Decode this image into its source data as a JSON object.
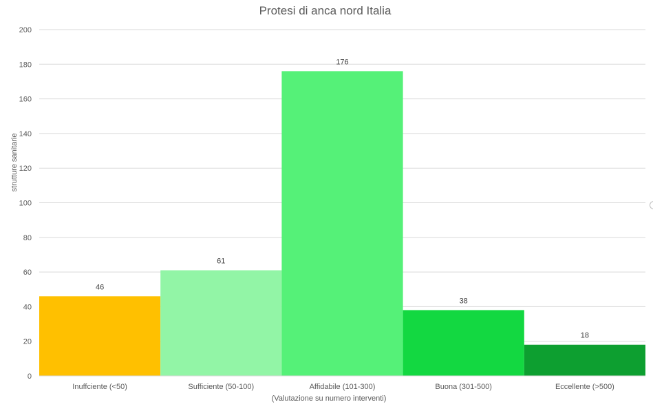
{
  "chart_data": {
    "type": "bar",
    "title": "Protesi di anca nord Italia",
    "xlabel": "(Valutazione su numero interventi)",
    "ylabel": "strutture sanitarie",
    "categories": [
      "Inuffciente (<50)",
      "Sufficiente (50-100)",
      "Affidabile (101-300)",
      "Buona (301-500)",
      "Eccellente (>500)"
    ],
    "values": [
      46,
      61,
      176,
      38,
      18
    ],
    "colors": [
      "#ffc000",
      "#92f5a6",
      "#55f178",
      "#13d841",
      "#0d9f30"
    ],
    "ylim": [
      0,
      200
    ],
    "yticks": [
      0,
      20,
      40,
      60,
      80,
      100,
      120,
      140,
      160,
      180,
      200
    ],
    "grid": true,
    "legend": "none",
    "data_labels": true
  }
}
